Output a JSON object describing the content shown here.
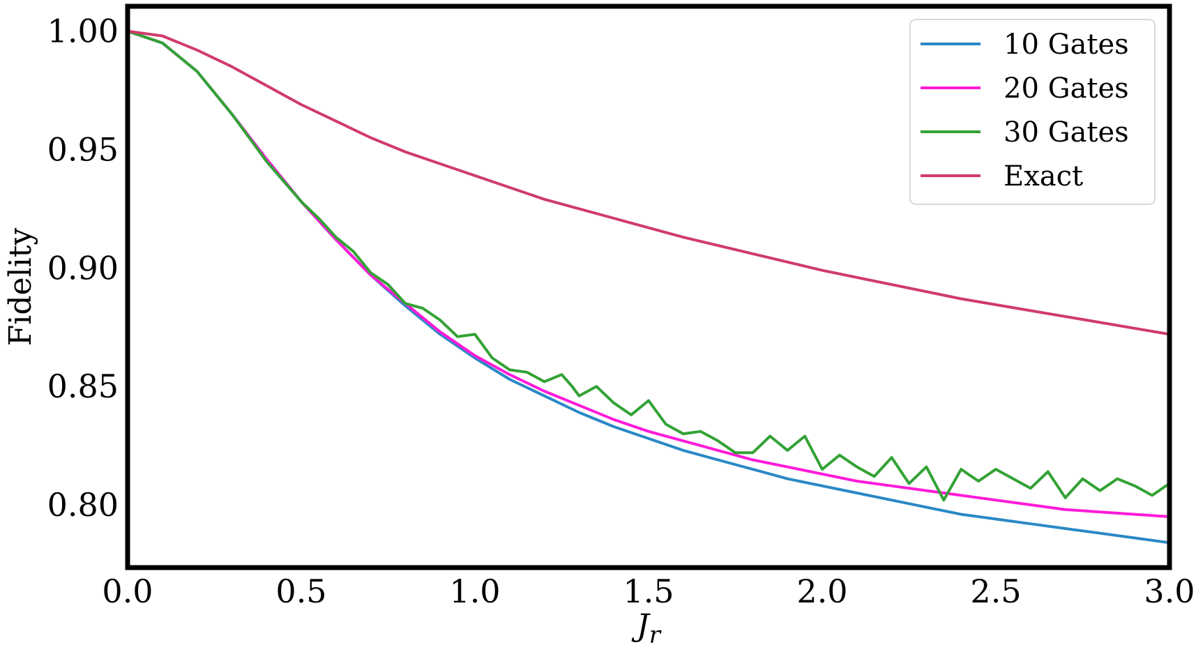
{
  "chart_data": {
    "type": "line",
    "xlabel": "J",
    "xlabel_subscript": "r",
    "ylabel": "Fidelity",
    "xlim": [
      0.0,
      3.0
    ],
    "ylim": [
      0.7735,
      1.0105
    ],
    "xticks": [
      "0.0",
      "0.5",
      "1.0",
      "1.5",
      "2.0",
      "2.5",
      "3.0"
    ],
    "xtick_values": [
      0.0,
      0.5,
      1.0,
      1.5,
      2.0,
      2.5,
      3.0
    ],
    "yticks": [
      "0.80",
      "0.85",
      "0.90",
      "0.95",
      "1.00"
    ],
    "ytick_values": [
      0.8,
      0.85,
      0.9,
      0.95,
      1.0
    ],
    "grid": false,
    "legend_position": "top-right",
    "series": [
      {
        "name": "10 Gates",
        "color": "#2a88c6",
        "x": [
          0.0,
          0.1,
          0.2,
          0.3,
          0.4,
          0.5,
          0.6,
          0.7,
          0.8,
          0.9,
          1.0,
          1.1,
          1.2,
          1.3,
          1.4,
          1.5,
          1.6,
          1.7,
          1.8,
          1.9,
          2.0,
          2.1,
          2.2,
          2.3,
          2.4,
          2.5,
          2.6,
          2.7,
          2.8,
          2.9,
          3.0
        ],
        "y": [
          1.0,
          0.995,
          0.983,
          0.965,
          0.946,
          0.928,
          0.912,
          0.897,
          0.884,
          0.872,
          0.862,
          0.853,
          0.846,
          0.839,
          0.833,
          0.828,
          0.823,
          0.819,
          0.815,
          0.811,
          0.808,
          0.805,
          0.802,
          0.799,
          0.796,
          0.794,
          0.792,
          0.79,
          0.788,
          0.786,
          0.784
        ]
      },
      {
        "name": "20 Gates",
        "color": "#ff1ad9",
        "x": [
          0.0,
          0.1,
          0.2,
          0.3,
          0.4,
          0.5,
          0.6,
          0.7,
          0.8,
          0.9,
          1.0,
          1.1,
          1.2,
          1.3,
          1.4,
          1.5,
          1.6,
          1.7,
          1.8,
          1.9,
          2.0,
          2.1,
          2.2,
          2.3,
          2.4,
          2.5,
          2.6,
          2.7,
          2.8,
          2.9,
          3.0
        ],
        "y": [
          1.0,
          0.995,
          0.983,
          0.965,
          0.946,
          0.928,
          0.912,
          0.897,
          0.885,
          0.873,
          0.863,
          0.855,
          0.848,
          0.842,
          0.836,
          0.831,
          0.827,
          0.823,
          0.819,
          0.816,
          0.813,
          0.81,
          0.808,
          0.806,
          0.804,
          0.802,
          0.8,
          0.798,
          0.797,
          0.796,
          0.795
        ]
      },
      {
        "name": "30 Gates",
        "color": "#33a235",
        "x": [
          0.0,
          0.1,
          0.2,
          0.3,
          0.4,
          0.5,
          0.55,
          0.6,
          0.65,
          0.7,
          0.75,
          0.8,
          0.85,
          0.9,
          0.95,
          1.0,
          1.05,
          1.1,
          1.15,
          1.2,
          1.25,
          1.28,
          1.3,
          1.35,
          1.4,
          1.45,
          1.5,
          1.55,
          1.6,
          1.65,
          1.7,
          1.75,
          1.8,
          1.85,
          1.9,
          1.95,
          2.0,
          2.05,
          2.1,
          2.15,
          2.2,
          2.25,
          2.3,
          2.35,
          2.4,
          2.45,
          2.5,
          2.55,
          2.6,
          2.65,
          2.7,
          2.75,
          2.8,
          2.85,
          2.9,
          2.95,
          3.0
        ],
        "y": [
          1.0,
          0.995,
          0.983,
          0.965,
          0.945,
          0.928,
          0.921,
          0.913,
          0.907,
          0.898,
          0.893,
          0.885,
          0.883,
          0.878,
          0.871,
          0.872,
          0.862,
          0.857,
          0.856,
          0.852,
          0.855,
          0.85,
          0.846,
          0.85,
          0.843,
          0.838,
          0.844,
          0.834,
          0.83,
          0.831,
          0.827,
          0.822,
          0.822,
          0.829,
          0.823,
          0.829,
          0.815,
          0.821,
          0.816,
          0.812,
          0.82,
          0.809,
          0.816,
          0.802,
          0.815,
          0.81,
          0.815,
          0.811,
          0.807,
          0.814,
          0.803,
          0.811,
          0.806,
          0.811,
          0.808,
          0.804,
          0.809
        ]
      },
      {
        "name": "Exact",
        "color": "#d03b6b",
        "x": [
          0.0,
          0.1,
          0.2,
          0.3,
          0.4,
          0.5,
          0.6,
          0.7,
          0.8,
          0.9,
          1.0,
          1.2,
          1.4,
          1.6,
          1.8,
          2.0,
          2.2,
          2.4,
          2.6,
          2.8,
          3.0
        ],
        "y": [
          1.0,
          0.998,
          0.992,
          0.985,
          0.977,
          0.969,
          0.962,
          0.955,
          0.949,
          0.944,
          0.939,
          0.929,
          0.921,
          0.913,
          0.906,
          0.899,
          0.893,
          0.887,
          0.882,
          0.877,
          0.872
        ]
      }
    ]
  }
}
